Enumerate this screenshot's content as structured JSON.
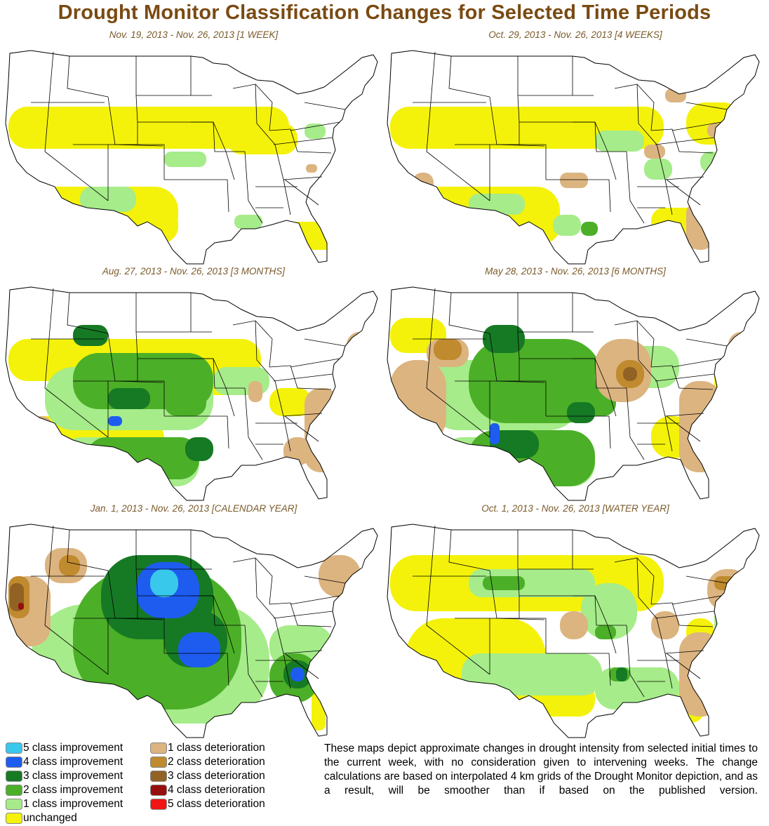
{
  "title": "Drought Monitor Classification Changes for Selected Time Periods",
  "colors": {
    "title": "#7a4a12",
    "improve5": "#38c8ec",
    "improve4": "#1e5cf0",
    "improve3": "#167a24",
    "improve2": "#4caf28",
    "improve1": "#a6ec8a",
    "unchanged": "#f4f20a",
    "deteriorate1": "#dcb480",
    "deteriorate2": "#c08a2e",
    "deteriorate3": "#926224",
    "deteriorate4": "#960e0e",
    "deteriorate5": "#f01414"
  },
  "panels": [
    {
      "title": "Nov. 19, 2013 - Nov. 26, 2013 [1 WEEK]",
      "scheme": "week"
    },
    {
      "title": "Oct. 29, 2013 - Nov. 26, 2013 [4 WEEKS]",
      "scheme": "month"
    },
    {
      "title": "Aug. 27, 2013 - Nov. 26, 2013 [3 MONTHS]",
      "scheme": "three"
    },
    {
      "title": "May 28, 2013 - Nov. 26, 2013 [6 MONTHS]",
      "scheme": "six"
    },
    {
      "title": "Jan. 1, 2013 - Nov. 26, 2013 [CALENDAR YEAR]",
      "scheme": "calendar"
    },
    {
      "title": "Oct. 1, 2013 - Nov. 26, 2013 [WATER YEAR]",
      "scheme": "water"
    }
  ],
  "legend": {
    "improvement": [
      {
        "label": "5 class improvement",
        "color": "#38c8ec"
      },
      {
        "label": "4 class improvement",
        "color": "#1e5cf0"
      },
      {
        "label": "3 class improvement",
        "color": "#167a24"
      },
      {
        "label": "2 class improvement",
        "color": "#4caf28"
      },
      {
        "label": "1 class improvement",
        "color": "#a6ec8a"
      },
      {
        "label": "unchanged",
        "color": "#f4f20a"
      }
    ],
    "deterioration": [
      {
        "label": "1 class deterioration",
        "color": "#dcb480"
      },
      {
        "label": "2 class deterioration",
        "color": "#c08a2e"
      },
      {
        "label": "3 class deterioration",
        "color": "#926224"
      },
      {
        "label": "4 class deterioration",
        "color": "#960e0e"
      },
      {
        "label": "5 class deterioration",
        "color": "#f01414"
      }
    ]
  },
  "note": "These maps depict approximate changes in drought intensity from selected initial times to the current week, with no consideration given to intervening weeks. The change calculations are based on interpolated 4 km grids of the Drought Monitor depiction, and as a result, will be smoother than if based on the published version."
}
